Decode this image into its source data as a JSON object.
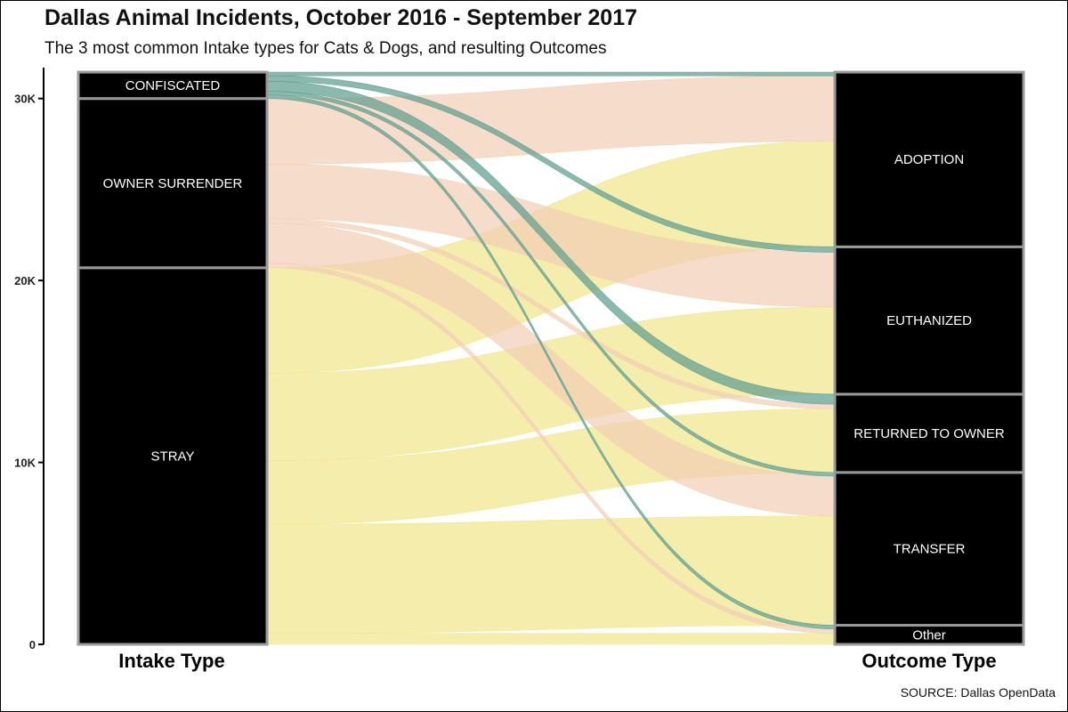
{
  "title": "Dallas Animal Incidents, October 2016 - September 2017",
  "subtitle": "The 3 most common Intake types for Cats & Dogs, and resulting Outcomes",
  "source": "SOURCE: Dallas OpenData",
  "chart_data": {
    "type": "alluvial",
    "ylim": [
      0,
      31600
    ],
    "y_ticks": [
      {
        "value": 0,
        "label": "0"
      },
      {
        "value": 10000,
        "label": "10K"
      },
      {
        "value": 20000,
        "label": "20K"
      },
      {
        "value": 30000,
        "label": "30K"
      }
    ],
    "axes": [
      {
        "title": "Intake Type",
        "categories": [
          "STRAY",
          "OWNER SURRENDER",
          "CONFISCATED"
        ]
      },
      {
        "title": "Outcome Type",
        "categories": [
          "Other",
          "TRANSFER",
          "RETURNED TO OWNER",
          "EUTHANIZED",
          "ADOPTION"
        ]
      }
    ],
    "colors": {
      "STRAY": "#f0e68c",
      "OWNER SURRENDER": "#f2cfb5",
      "CONFISCATED": "#5f9e8f"
    },
    "flows": [
      {
        "intake": "STRAY",
        "outcome": "Other",
        "value": 600
      },
      {
        "intake": "STRAY",
        "outcome": "TRANSFER",
        "value": 6000
      },
      {
        "intake": "STRAY",
        "outcome": "RETURNED TO OWNER",
        "value": 3500
      },
      {
        "intake": "STRAY",
        "outcome": "EUTHANIZED",
        "value": 4800
      },
      {
        "intake": "STRAY",
        "outcome": "ADOPTION",
        "value": 5800
      },
      {
        "intake": "OWNER SURRENDER",
        "outcome": "Other",
        "value": 250
      },
      {
        "intake": "OWNER SURRENDER",
        "outcome": "TRANSFER",
        "value": 2200
      },
      {
        "intake": "OWNER SURRENDER",
        "outcome": "RETURNED TO OWNER",
        "value": 250
      },
      {
        "intake": "OWNER SURRENDER",
        "outcome": "EUTHANIZED",
        "value": 3000
      },
      {
        "intake": "OWNER SURRENDER",
        "outcome": "ADOPTION",
        "value": 3600
      },
      {
        "intake": "CONFISCATED",
        "outcome": "Other",
        "value": 200
      },
      {
        "intake": "CONFISCATED",
        "outcome": "TRANSFER",
        "value": 200
      },
      {
        "intake": "CONFISCATED",
        "outcome": "RETURNED TO OWNER",
        "value": 550
      },
      {
        "intake": "CONFISCATED",
        "outcome": "EUTHANIZED",
        "value": 300
      },
      {
        "intake": "CONFISCATED",
        "outcome": "ADOPTION",
        "value": 200
      }
    ]
  }
}
